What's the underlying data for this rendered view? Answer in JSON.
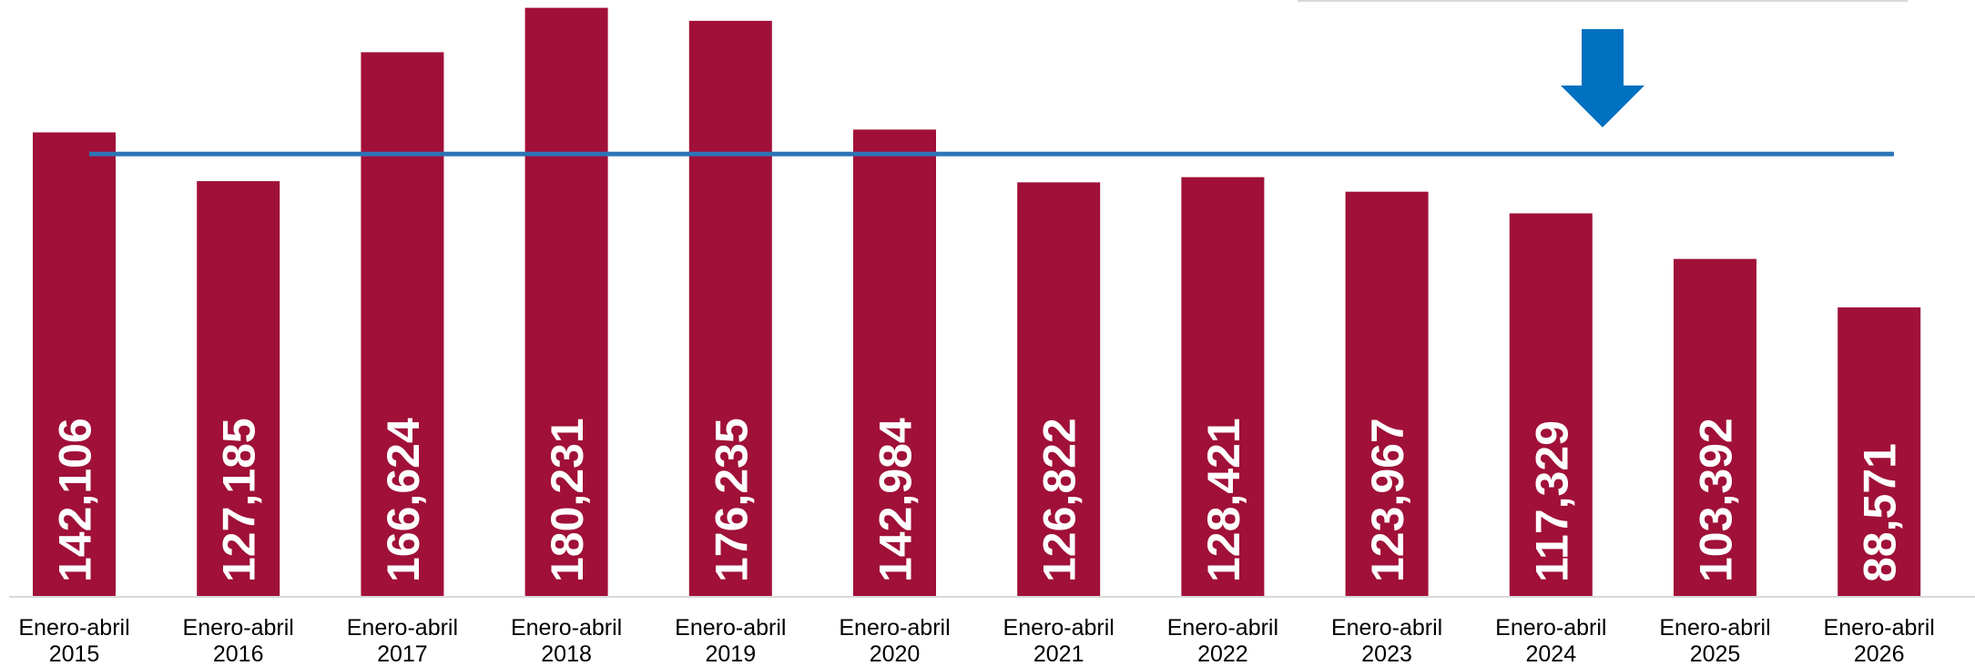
{
  "chart_data": {
    "type": "bar",
    "categories": [
      [
        "Enero-abril",
        "2015"
      ],
      [
        "Enero-abril",
        "2016"
      ],
      [
        "Enero-abril",
        "2017"
      ],
      [
        "Enero-abril",
        "2018"
      ],
      [
        "Enero-abril",
        "2019"
      ],
      [
        "Enero-abril",
        "2020"
      ],
      [
        "Enero-abril",
        "2021"
      ],
      [
        "Enero-abril",
        "2022"
      ],
      [
        "Enero-abril",
        "2023"
      ],
      [
        "Enero-abril",
        "2024"
      ],
      [
        "Enero-abril",
        "2025"
      ],
      [
        "Enero-abril",
        "2026"
      ]
    ],
    "values": [
      142106,
      127185,
      166624,
      180231,
      176235,
      142984,
      126822,
      128421,
      123967,
      117329,
      103392,
      88571
    ],
    "value_labels": [
      "142,106",
      "127,185",
      "166,624",
      "180,231",
      "176,235",
      "142,984",
      "126,822",
      "128,421",
      "123,967",
      "117,329",
      "103,392",
      "88,571"
    ],
    "reference_line": {
      "value": 135500
    },
    "arrow": {
      "direction": "down"
    },
    "ylim": [
      0,
      181500
    ],
    "grid": false,
    "colors": {
      "bar": "#A01038",
      "reference_line": "#2E74B5",
      "arrow": "#0070C0"
    }
  }
}
